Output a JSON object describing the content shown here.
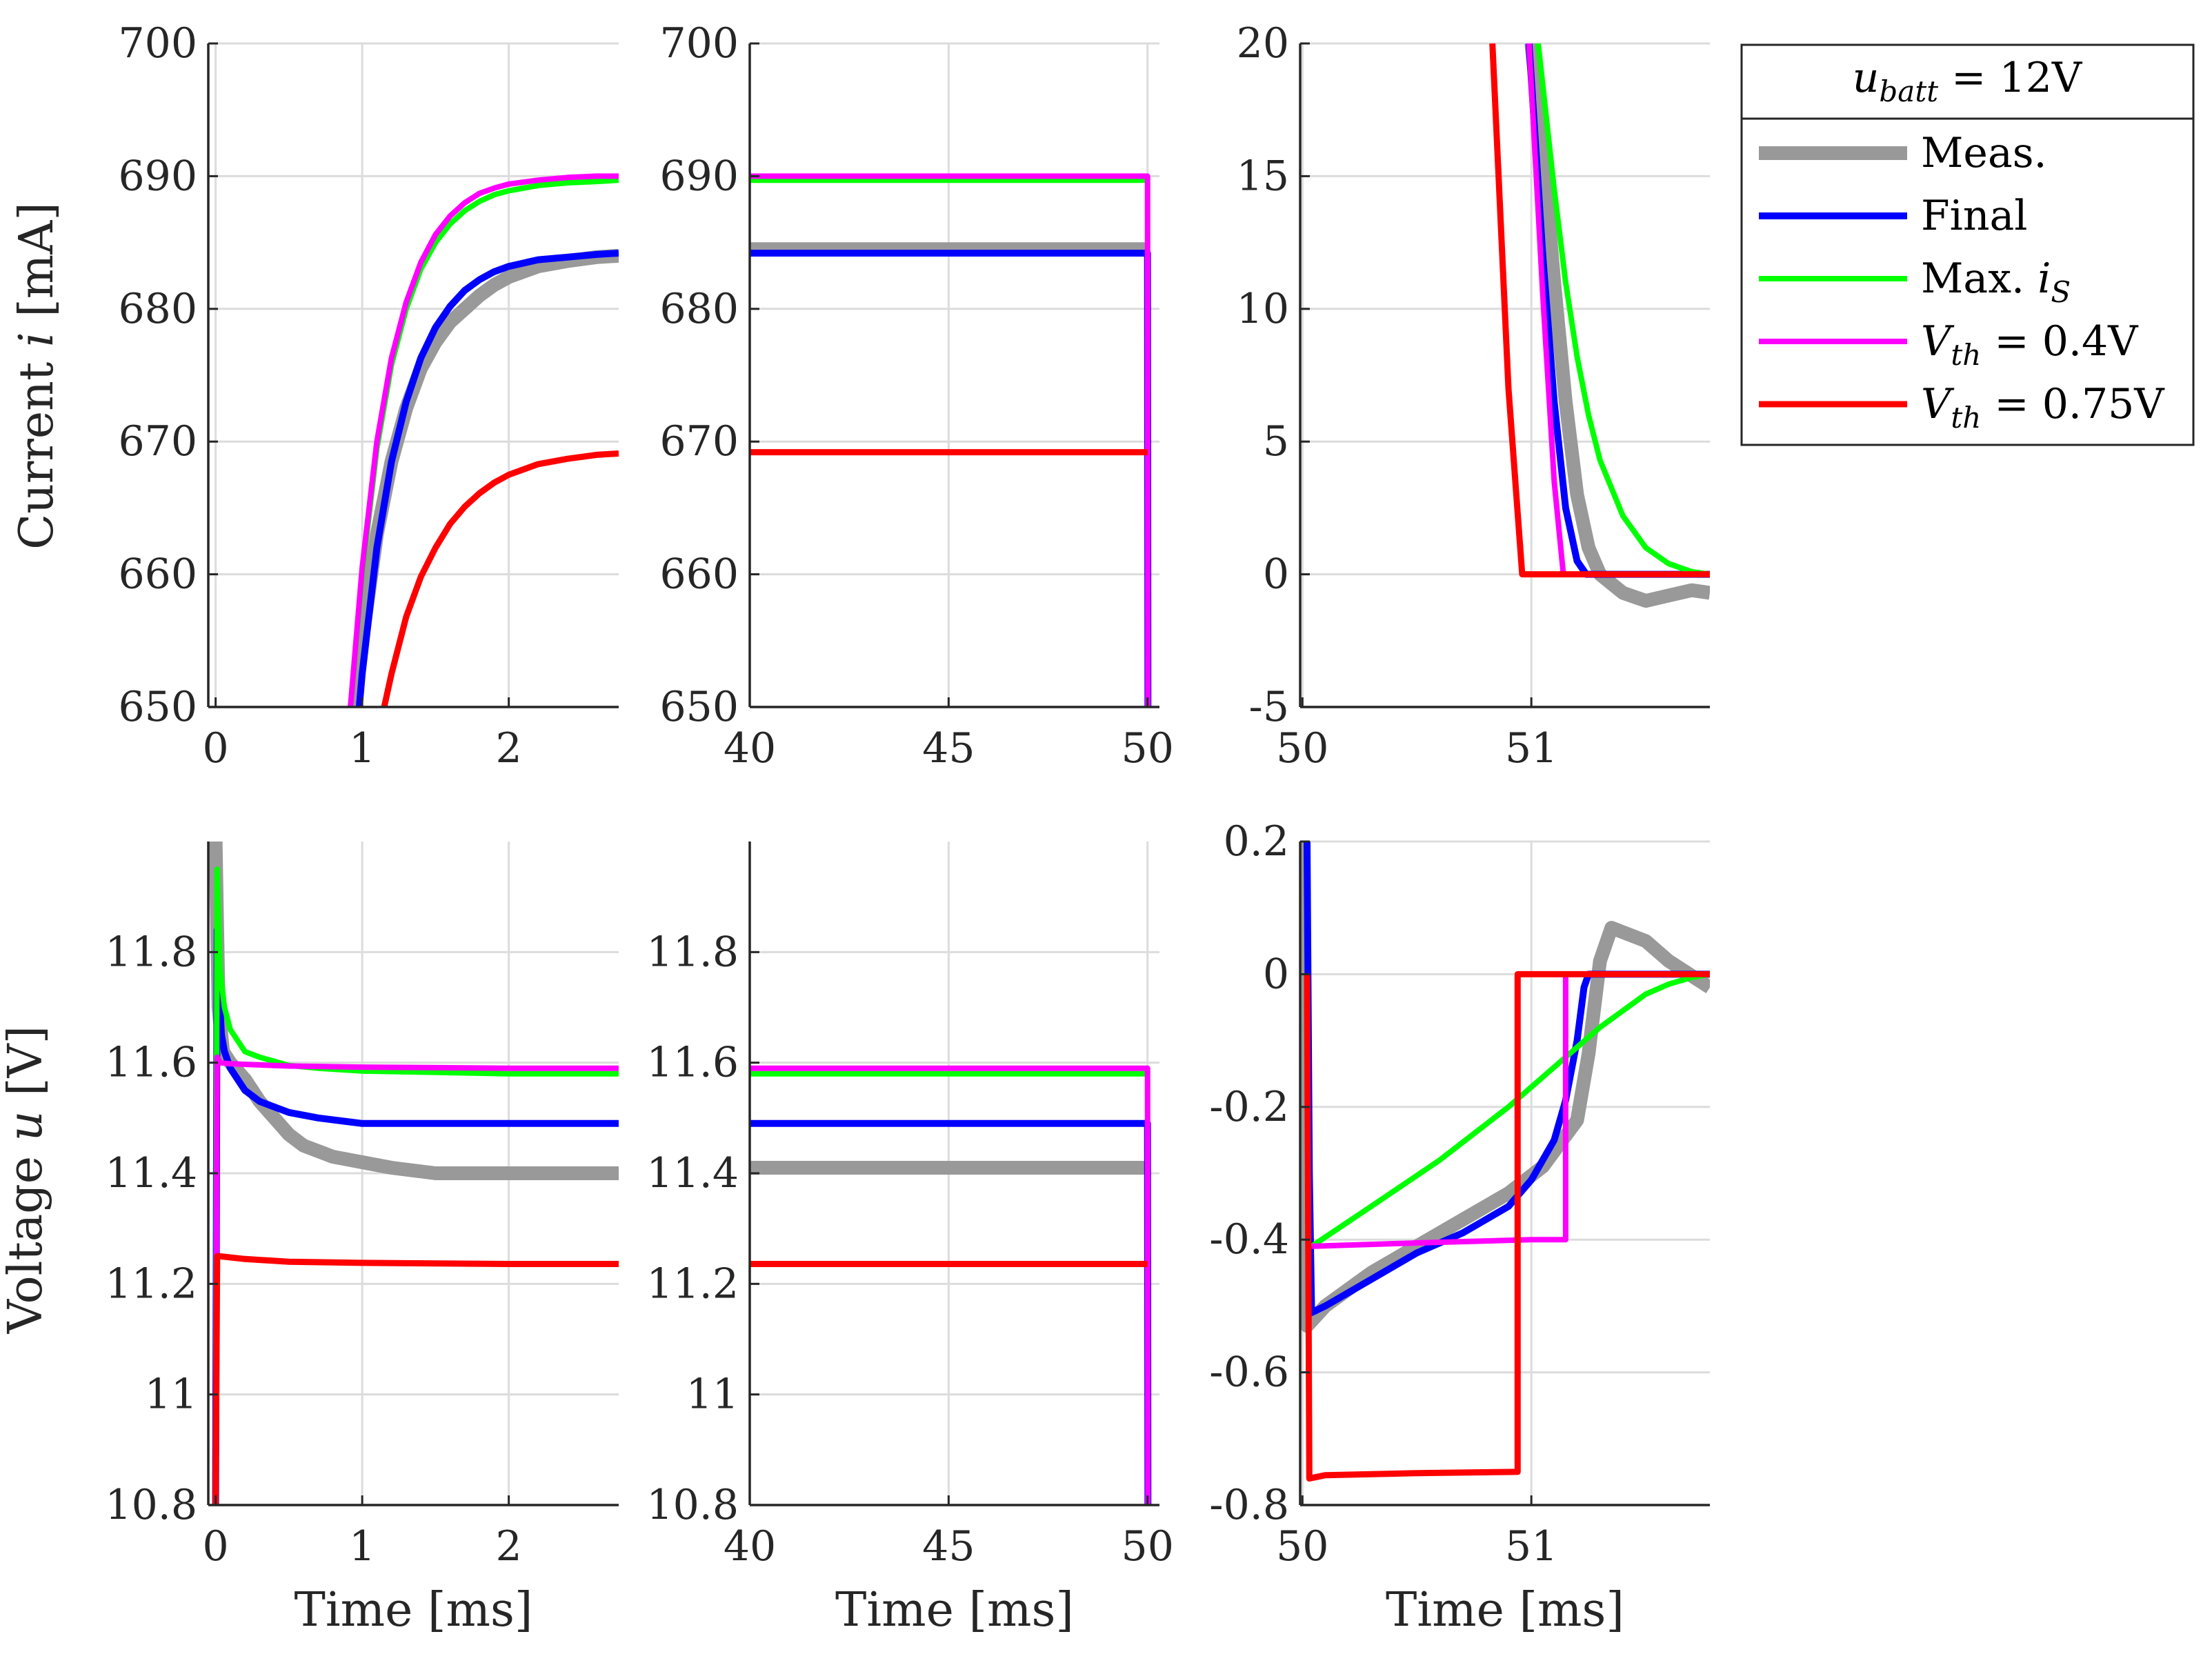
{
  "chart_data": [
    {
      "type": "line",
      "panel": "current-startup",
      "ylabel": "Current i [mA]",
      "xlabel": "",
      "xlim": [
        -0.05,
        2.75
      ],
      "ylim": [
        650,
        700
      ],
      "xticks": [
        0,
        1,
        2
      ],
      "xtick_labels": [
        "0",
        "1",
        "2"
      ],
      "yticks": [
        650,
        660,
        670,
        680,
        690,
        700
      ],
      "ytick_labels": [
        "650",
        "660",
        "670",
        "680",
        "690",
        "700"
      ],
      "series": [
        {
          "name": "Meas.",
          "x": [
            0.95,
            1.0,
            1.1,
            1.2,
            1.3,
            1.4,
            1.5,
            1.6,
            1.7,
            1.8,
            1.9,
            2.0,
            2.2,
            2.4,
            2.6,
            2.75
          ],
          "y": [
            650,
            655,
            663,
            668.5,
            672.5,
            675.5,
            677.5,
            679,
            680,
            681,
            681.8,
            682.4,
            683.2,
            683.6,
            683.9,
            684
          ]
        },
        {
          "name": "Final",
          "x": [
            0.98,
            1.0,
            1.1,
            1.2,
            1.3,
            1.4,
            1.5,
            1.6,
            1.7,
            1.8,
            1.9,
            2.0,
            2.2,
            2.4,
            2.6,
            2.75
          ],
          "y": [
            650,
            652.5,
            662,
            668.5,
            673,
            676.3,
            678.6,
            680.2,
            681.4,
            682.2,
            682.8,
            683.2,
            683.7,
            683.9,
            684.1,
            684.2
          ]
        },
        {
          "name": "Max. i_S",
          "x": [
            0.92,
            1.0,
            1.1,
            1.2,
            1.3,
            1.4,
            1.5,
            1.6,
            1.7,
            1.8,
            1.9,
            2.0,
            2.2,
            2.4,
            2.6,
            2.75
          ],
          "y": [
            650,
            660,
            669.5,
            675.8,
            680,
            683,
            685,
            686.4,
            687.4,
            688.1,
            688.6,
            688.9,
            689.3,
            689.5,
            689.6,
            689.7
          ]
        },
        {
          "name": "V_th = 0.4V",
          "x": [
            0.92,
            1.0,
            1.1,
            1.2,
            1.3,
            1.4,
            1.5,
            1.6,
            1.7,
            1.8,
            1.9,
            2.0,
            2.2,
            2.4,
            2.6,
            2.75
          ],
          "y": [
            650,
            660.5,
            670,
            676.3,
            680.5,
            683.5,
            685.6,
            687,
            688,
            688.7,
            689.1,
            689.4,
            689.7,
            689.9,
            690,
            690
          ]
        },
        {
          "name": "V_th = 0.75V",
          "x": [
            1.15,
            1.2,
            1.3,
            1.4,
            1.5,
            1.6,
            1.7,
            1.8,
            1.9,
            2.0,
            2.2,
            2.4,
            2.6,
            2.75
          ],
          "y": [
            650,
            652.5,
            656.8,
            659.8,
            662,
            663.8,
            665.1,
            666.1,
            666.9,
            667.5,
            668.3,
            668.7,
            669,
            669.1
          ]
        }
      ]
    },
    {
      "type": "line",
      "panel": "current-steady",
      "ylabel": "",
      "xlabel": "",
      "xlim": [
        40,
        50.3
      ],
      "ylim": [
        650,
        700
      ],
      "xticks": [
        40,
        45,
        50
      ],
      "xtick_labels": [
        "40",
        "45",
        "50"
      ],
      "yticks": [
        650,
        660,
        670,
        680,
        690,
        700
      ],
      "ytick_labels": [
        "650",
        "660",
        "670",
        "680",
        "690",
        "700"
      ],
      "series": [
        {
          "name": "Meas.",
          "x": [
            40,
            50
          ],
          "y": [
            684.5,
            684.5
          ]
        },
        {
          "name": "Final",
          "x": [
            40,
            50,
            50,
            50.01
          ],
          "y": [
            684.2,
            684.2,
            684.2,
            650
          ]
        },
        {
          "name": "Max. i_S",
          "x": [
            40,
            50
          ],
          "y": [
            689.7,
            689.7
          ]
        },
        {
          "name": "V_th = 0.4V",
          "x": [
            40,
            50,
            50,
            50.01
          ],
          "y": [
            690,
            690,
            690,
            650
          ]
        },
        {
          "name": "V_th = 0.75V",
          "x": [
            40,
            50
          ],
          "y": [
            669.2,
            669.2
          ]
        }
      ]
    },
    {
      "type": "line",
      "panel": "current-switchoff",
      "ylabel": "",
      "xlabel": "",
      "xlim": [
        49.99,
        51.78
      ],
      "ylim": [
        -5,
        20
      ],
      "xticks": [
        50,
        51
      ],
      "xtick_labels": [
        "50",
        "51"
      ],
      "yticks": [
        -5,
        0,
        5,
        10,
        15,
        20
      ],
      "ytick_labels": [
        "-5",
        "0",
        "5",
        "10",
        "15",
        "20"
      ],
      "series": [
        {
          "name": "Meas.",
          "x": [
            51.0,
            51.05,
            51.1,
            51.15,
            51.2,
            51.25,
            51.3,
            51.4,
            51.5,
            51.6,
            51.7,
            51.78
          ],
          "y": [
            20,
            16,
            11,
            6.5,
            3,
            1,
            0,
            -0.7,
            -1,
            -0.8,
            -0.6,
            -0.7
          ]
        },
        {
          "name": "Final",
          "x": [
            50.99,
            51.05,
            51.1,
            51.15,
            51.2,
            51.24,
            51.3,
            51.5,
            51.78
          ],
          "y": [
            20,
            12,
            6.5,
            2.5,
            0.5,
            0,
            0,
            0,
            0
          ]
        },
        {
          "name": "Max. i_S",
          "x": [
            51.03,
            51.1,
            51.15,
            51.2,
            51.25,
            51.3,
            51.4,
            51.5,
            51.6,
            51.7,
            51.78
          ],
          "y": [
            20,
            14.5,
            11,
            8.2,
            6,
            4.3,
            2.2,
            1,
            0.4,
            0.1,
            0
          ]
        },
        {
          "name": "V_th = 0.4V",
          "x": [
            50.99,
            51.05,
            51.1,
            51.14,
            51.3,
            51.78
          ],
          "y": [
            20,
            10.5,
            3.5,
            0,
            0,
            0
          ]
        },
        {
          "name": "V_th = 0.75V",
          "x": [
            50.83,
            50.9,
            50.96,
            51.2,
            51.78
          ],
          "y": [
            20,
            7,
            0,
            0,
            0
          ]
        }
      ]
    },
    {
      "type": "line",
      "panel": "voltage-startup",
      "ylabel": "Voltage u [V]",
      "xlabel": "Time [ms]",
      "xlim": [
        -0.05,
        2.75
      ],
      "ylim": [
        10.8,
        12.0
      ],
      "xticks": [
        0,
        1,
        2
      ],
      "xtick_labels": [
        "0",
        "1",
        "2"
      ],
      "yticks": [
        10.8,
        11,
        11.2,
        11.4,
        11.6,
        11.8
      ],
      "ytick_labels": [
        "10.8",
        "11",
        "11.2",
        "11.4",
        "11.6",
        "11.8"
      ],
      "series": [
        {
          "name": "Meas.",
          "x": [
            0,
            0.02,
            0.05,
            0.1,
            0.2,
            0.3,
            0.4,
            0.5,
            0.6,
            0.8,
            1.0,
            1.2,
            1.5,
            2.0,
            2.5,
            2.75
          ],
          "y": [
            12.0,
            11.7,
            11.62,
            11.6,
            11.57,
            11.53,
            11.5,
            11.47,
            11.45,
            11.43,
            11.42,
            11.41,
            11.4,
            11.4,
            11.4,
            11.4
          ]
        },
        {
          "name": "Final",
          "x": [
            0,
            0.01,
            0.02,
            0.04,
            0.06,
            0.1,
            0.2,
            0.3,
            0.5,
            0.7,
            1.0,
            1.5,
            2.0,
            2.75
          ],
          "y": [
            10.8,
            11.84,
            11.75,
            11.65,
            11.62,
            11.59,
            11.55,
            11.53,
            11.51,
            11.5,
            11.49,
            11.49,
            11.49,
            11.49
          ]
        },
        {
          "name": "Max. i_S",
          "x": [
            0,
            0.01,
            0.03,
            0.06,
            0.1,
            0.2,
            0.3,
            0.5,
            0.7,
            1.0,
            2.0,
            2.75
          ],
          "y": [
            10.8,
            11.95,
            11.77,
            11.7,
            11.66,
            11.62,
            11.61,
            11.595,
            11.59,
            11.585,
            11.58,
            11.58
          ]
        },
        {
          "name": "V_th = 0.4V",
          "x": [
            0,
            0.01,
            0.03,
            0.1,
            0.5,
            1.0,
            2.0,
            2.75
          ],
          "y": [
            10.8,
            11.61,
            11.6,
            11.598,
            11.594,
            11.592,
            11.59,
            11.59
          ]
        },
        {
          "name": "V_th = 0.75V",
          "x": [
            0,
            0.01,
            0.03,
            0.2,
            0.5,
            1.0,
            2.0,
            2.75
          ],
          "y": [
            10.8,
            11.25,
            11.25,
            11.245,
            11.24,
            11.238,
            11.236,
            11.236
          ]
        }
      ]
    },
    {
      "type": "line",
      "panel": "voltage-steady",
      "ylabel": "",
      "xlabel": "Time [ms]",
      "xlim": [
        40,
        50.3
      ],
      "ylim": [
        10.8,
        12.0
      ],
      "xticks": [
        40,
        45,
        50
      ],
      "xtick_labels": [
        "40",
        "45",
        "50"
      ],
      "yticks": [
        10.8,
        11,
        11.2,
        11.4,
        11.6,
        11.8
      ],
      "ytick_labels": [
        "10.8",
        "11",
        "11.2",
        "11.4",
        "11.6",
        "11.8"
      ],
      "series": [
        {
          "name": "Meas.",
          "x": [
            40,
            50
          ],
          "y": [
            11.41,
            11.41
          ]
        },
        {
          "name": "Final",
          "x": [
            40,
            50,
            50,
            50.01
          ],
          "y": [
            11.49,
            11.49,
            11.49,
            10.8
          ]
        },
        {
          "name": "Max. i_S",
          "x": [
            40,
            50
          ],
          "y": [
            11.58,
            11.58
          ]
        },
        {
          "name": "V_th = 0.4V",
          "x": [
            40,
            50,
            50,
            50.01
          ],
          "y": [
            11.59,
            11.59,
            11.59,
            10.8
          ]
        },
        {
          "name": "V_th = 0.75V",
          "x": [
            40,
            50
          ],
          "y": [
            11.236,
            11.236
          ]
        }
      ]
    },
    {
      "type": "line",
      "panel": "voltage-switchoff",
      "ylabel": "",
      "xlabel": "Time [ms]",
      "xlim": [
        49.99,
        51.78
      ],
      "ylim": [
        -0.8,
        0.2
      ],
      "xticks": [
        50,
        51
      ],
      "xtick_labels": [
        "50",
        "51"
      ],
      "yticks": [
        -0.8,
        -0.6,
        -0.4,
        -0.2,
        0,
        0.2
      ],
      "ytick_labels": [
        "-0.8",
        "-0.6",
        "-0.4",
        "-0.2",
        "0",
        "0.2"
      ],
      "series": [
        {
          "name": "Meas.",
          "x": [
            50.0,
            50.01,
            50.02,
            50.1,
            50.3,
            50.5,
            50.7,
            50.9,
            51.05,
            51.2,
            51.25,
            51.3,
            51.35,
            51.5,
            51.6,
            51.78
          ],
          "y": [
            0.2,
            -0.3,
            -0.53,
            -0.5,
            -0.45,
            -0.41,
            -0.37,
            -0.33,
            -0.29,
            -0.22,
            -0.12,
            0.02,
            0.07,
            0.05,
            0.02,
            -0.02
          ]
        },
        {
          "name": "Final",
          "x": [
            50.02,
            50.03,
            50.04,
            50.1,
            50.3,
            50.5,
            50.7,
            50.9,
            51.0,
            51.1,
            51.15,
            51.2,
            51.23,
            51.25,
            51.78
          ],
          "y": [
            0.2,
            -0.3,
            -0.51,
            -0.5,
            -0.46,
            -0.42,
            -0.39,
            -0.35,
            -0.31,
            -0.25,
            -0.19,
            -0.1,
            -0.02,
            0.0,
            0.0
          ]
        },
        {
          "name": "Max. i_S",
          "x": [
            50.04,
            50.3,
            50.6,
            50.9,
            51.1,
            51.3,
            51.5,
            51.6,
            51.7,
            51.78
          ],
          "y": [
            -0.41,
            -0.35,
            -0.28,
            -0.2,
            -0.14,
            -0.08,
            -0.03,
            -0.015,
            -0.005,
            0.0
          ]
        },
        {
          "name": "V_th = 0.4V",
          "x": [
            50.04,
            50.5,
            51.0,
            51.15,
            51.15,
            51.78
          ],
          "y": [
            -0.41,
            -0.405,
            -0.4,
            -0.4,
            0.0,
            0.0
          ]
        },
        {
          "name": "V_th = 0.75V",
          "x": [
            50.02,
            50.03,
            50.1,
            50.5,
            50.94,
            50.94,
            51.78
          ],
          "y": [
            0.0,
            -0.76,
            -0.755,
            -0.752,
            -0.75,
            0.0,
            0.0
          ]
        }
      ]
    }
  ],
  "colors": {
    "Meas.": "#999999",
    "Final": "#0000ff",
    "Max. i_S": "#00ff00",
    "V_th = 0.4V": "#ff00ff",
    "V_th = 0.75V": "#ff0000",
    "axis": "#262626",
    "grid": "#dcdcdc"
  },
  "legend": {
    "placement": "outside-right-top",
    "title_var": "u",
    "title_sub": "batt",
    "title_rest": " = 12V",
    "items": [
      {
        "series": "Meas.",
        "text": "Meas.",
        "sub": "",
        "rest": ""
      },
      {
        "series": "Final",
        "text": "Final",
        "sub": "",
        "rest": ""
      },
      {
        "series": "Max. i_S",
        "text": "Max. ",
        "var": "i",
        "sub": "S",
        "rest": ""
      },
      {
        "series": "V_th = 0.4V",
        "text": "",
        "var": "V",
        "sub": "th",
        "rest": " = 0.4V"
      },
      {
        "series": "V_th = 0.75V",
        "text": "",
        "var": "V",
        "sub": "th",
        "rest": " = 0.75V"
      }
    ]
  },
  "ylabel_parts": {
    "current": {
      "text": "Current ",
      "var": "i",
      "unit": " [mA]"
    },
    "voltage": {
      "text": "Voltage ",
      "var": "u",
      "unit": " [V]"
    }
  },
  "grid": true
}
